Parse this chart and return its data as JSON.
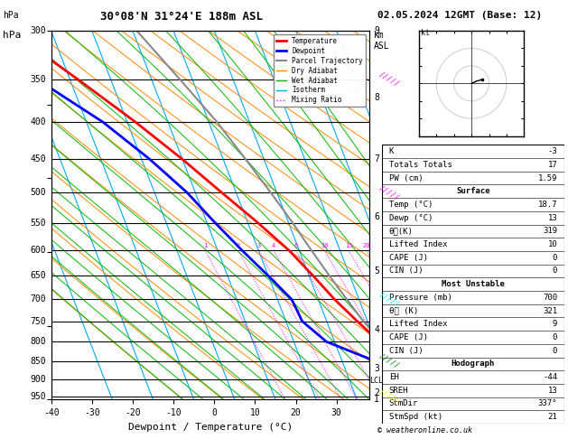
{
  "title_left": "30°08'N 31°24'E 188m ASL",
  "title_right": "02.05.2024 12GMT (Base: 12)",
  "xlabel": "Dewpoint / Temperature (°C)",
  "ylabel_left": "hPa",
  "ylabel_right": "km\nASL",
  "pres_levels": [
    300,
    350,
    400,
    450,
    500,
    550,
    600,
    650,
    700,
    750,
    800,
    850,
    900,
    950
  ],
  "pres_min": 300,
  "pres_max": 960,
  "temp_min": -40,
  "temp_max": 38,
  "skew": 35,
  "isotherm_color": "#00aaff",
  "isotherm_lw": 0.8,
  "dry_adiabats_color": "#ff8800",
  "wet_adiabats_color": "#00bb00",
  "mixing_ratio_color": "#ff00ff",
  "mixing_ratio_values": [
    1,
    2,
    3,
    4,
    6,
    10,
    15,
    20,
    25
  ],
  "temp_profile_p": [
    950,
    900,
    850,
    800,
    750,
    700,
    650,
    600,
    550,
    500,
    450,
    400,
    350,
    300
  ],
  "temp_profile_t": [
    18.7,
    17.5,
    14.5,
    11.0,
    7.5,
    4.0,
    1.0,
    -2.5,
    -7.5,
    -13.5,
    -20.0,
    -28.0,
    -38.0,
    -50.0
  ],
  "dewp_profile_p": [
    950,
    900,
    850,
    800,
    750,
    700,
    650,
    600,
    550,
    500,
    450,
    400,
    350,
    300
  ],
  "dewp_profile_t": [
    13.0,
    11.5,
    8.0,
    -2.0,
    -6.0,
    -6.5,
    -10.0,
    -14.0,
    -18.0,
    -22.0,
    -28.0,
    -36.0,
    -48.0,
    -60.0
  ],
  "parcel_profile_p": [
    950,
    900,
    850,
    800,
    750,
    700,
    650,
    600,
    550,
    500,
    450,
    400,
    350,
    300
  ],
  "parcel_profile_t": [
    18.7,
    16.5,
    14.0,
    11.5,
    9.0,
    7.0,
    5.0,
    3.0,
    1.0,
    -1.5,
    -4.5,
    -8.0,
    -13.0,
    -19.0
  ],
  "temp_color": "#ff0000",
  "dewp_color": "#0000ff",
  "parcel_color": "#888888",
  "temp_lw": 2.0,
  "dewp_lw": 2.0,
  "parcel_lw": 1.5,
  "lcl_pressure": 905,
  "lcl_label": "LCL",
  "km_labels": {
    "300": 9,
    "370": 8,
    "450": 7,
    "540": 6,
    "640": 5,
    "770": 4,
    "870": 3,
    "940": 2,
    "960": 1
  },
  "info_K": "-3",
  "info_TT": "17",
  "info_PW": "1.59",
  "surf_temp": "18.7",
  "surf_dewp": "13",
  "surf_theta": "319",
  "surf_li": "10",
  "surf_cape": "0",
  "surf_cin": "0",
  "mu_pres": "700",
  "mu_theta": "321",
  "mu_li": "9",
  "mu_cape": "0",
  "mu_cin": "0",
  "hodo_EH": "-44",
  "hodo_SREH": "13",
  "hodo_StmDir": "337°",
  "hodo_StmSpd": "21",
  "background_color": "#ffffff",
  "plot_bg": "#ffffff"
}
